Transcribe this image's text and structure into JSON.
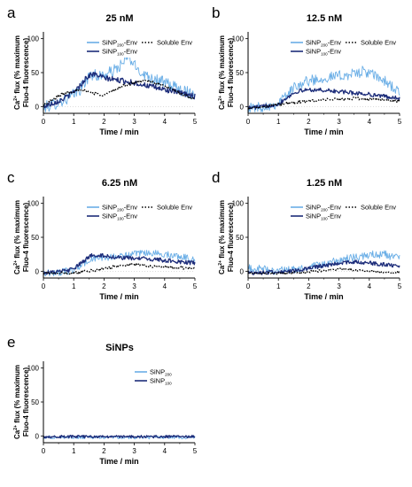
{
  "chart_data": [
    {
      "panel_letter": "a",
      "title": "25 nM",
      "type": "line",
      "xlabel": "Time / min",
      "ylabel_prefix": "Ca",
      "ylabel_sup": "2+",
      "ylabel_rest": " flux (% maximum",
      "ylabel_line2": "Fluo-4 fluorescence)",
      "xlim": [
        0,
        5
      ],
      "ylim": [
        -10,
        110
      ],
      "xticks": [
        "0",
        "1",
        "2",
        "3",
        "4",
        "5"
      ],
      "yticks": [
        "0",
        "50",
        "100"
      ],
      "legend": [
        {
          "main": "SiNP",
          "sub": "200",
          "rest": "-Env"
        },
        {
          "main": "SiNP",
          "sub": "100",
          "rest": "-Env"
        },
        {
          "main": "Soluble Env",
          "sub": "",
          "rest": ""
        }
      ],
      "series": [
        {
          "name": "SiNP200-Env",
          "color": "#6aaee6",
          "noise": 9,
          "x": [
            0,
            0.3,
            0.6,
            0.9,
            1.2,
            1.4,
            1.6,
            1.8,
            2.0,
            2.3,
            2.6,
            2.8,
            3.0,
            3.3,
            3.6,
            4.0,
            4.5,
            5.0
          ],
          "y": [
            -2,
            3,
            8,
            14,
            25,
            38,
            48,
            45,
            46,
            52,
            62,
            75,
            60,
            48,
            42,
            35,
            25,
            18
          ]
        },
        {
          "name": "SiNP100-Env",
          "color": "#1d2d7a",
          "noise": 4,
          "x": [
            0,
            0.3,
            0.6,
            0.9,
            1.2,
            1.4,
            1.6,
            1.8,
            2.0,
            2.3,
            2.6,
            3.0,
            3.5,
            4.0,
            4.5,
            5.0
          ],
          "y": [
            0,
            5,
            10,
            18,
            30,
            42,
            48,
            46,
            42,
            40,
            38,
            35,
            30,
            25,
            20,
            15
          ]
        },
        {
          "name": "Soluble Env",
          "color": "#000000",
          "noise": 2,
          "x": [
            0,
            0.3,
            0.6,
            0.9,
            1.2,
            1.5,
            1.8,
            2.0,
            2.3,
            2.6,
            3.0,
            3.3,
            3.6,
            4.0,
            4.5,
            5.0
          ],
          "y": [
            2,
            10,
            18,
            22,
            24,
            22,
            18,
            17,
            24,
            30,
            35,
            38,
            36,
            30,
            20,
            10
          ]
        }
      ]
    },
    {
      "panel_letter": "b",
      "title": "12.5 nM",
      "type": "line",
      "xlabel": "Time / min",
      "ylabel_prefix": "Ca",
      "ylabel_sup": "2+",
      "ylabel_rest": " flux (% maximum",
      "ylabel_line2": "Fluo-4 fluorescence)",
      "xlim": [
        0,
        5
      ],
      "ylim": [
        -10,
        110
      ],
      "xticks": [
        "0",
        "1",
        "2",
        "3",
        "4",
        "5"
      ],
      "yticks": [
        "0",
        "50",
        "100"
      ],
      "legend": [
        {
          "main": "SiNP",
          "sub": "200",
          "rest": "-Env"
        },
        {
          "main": "SiNP",
          "sub": "100",
          "rest": "-Env"
        },
        {
          "main": "Soluble Env",
          "sub": "",
          "rest": ""
        }
      ],
      "series": [
        {
          "name": "SiNP200-Env",
          "color": "#6aaee6",
          "noise": 8,
          "x": [
            0,
            0.5,
            1.0,
            1.3,
            1.6,
            2.0,
            2.5,
            3.0,
            3.5,
            3.8,
            4.2,
            4.6,
            5.0
          ],
          "y": [
            -3,
            0,
            5,
            18,
            32,
            38,
            42,
            45,
            48,
            52,
            45,
            35,
            20
          ]
        },
        {
          "name": "SiNP100-Env",
          "color": "#1d2d7a",
          "noise": 3,
          "x": [
            0,
            0.5,
            1.0,
            1.3,
            1.6,
            2.0,
            2.5,
            3.0,
            3.5,
            4.0,
            4.5,
            5.0
          ],
          "y": [
            -2,
            0,
            4,
            14,
            22,
            25,
            24,
            22,
            20,
            18,
            15,
            12
          ]
        },
        {
          "name": "Soluble Env",
          "color": "#000000",
          "noise": 2,
          "x": [
            0,
            0.5,
            1.0,
            1.5,
            2.0,
            2.5,
            3.0,
            3.5,
            4.0,
            4.5,
            5.0
          ],
          "y": [
            -2,
            -1,
            3,
            6,
            8,
            10,
            11,
            12,
            11,
            10,
            8
          ]
        }
      ]
    },
    {
      "panel_letter": "c",
      "title": "6.25 nM",
      "type": "line",
      "xlabel": "Time / min",
      "ylabel_prefix": "Ca",
      "ylabel_sup": "2+",
      "ylabel_rest": " flux (% maximum",
      "ylabel_line2": "Fluo-4 fluorescence)",
      "xlim": [
        0,
        5
      ],
      "ylim": [
        -10,
        110
      ],
      "xticks": [
        "0",
        "1",
        "2",
        "3",
        "4",
        "5"
      ],
      "yticks": [
        "0",
        "50",
        "100"
      ],
      "legend": [
        {
          "main": "SiNP",
          "sub": "200",
          "rest": "-Env"
        },
        {
          "main": "SiNP",
          "sub": "100",
          "rest": "-Env"
        },
        {
          "main": "Soluble Env",
          "sub": "",
          "rest": ""
        }
      ],
      "series": [
        {
          "name": "SiNP200-Env",
          "color": "#6aaee6",
          "noise": 5,
          "x": [
            0,
            0.5,
            1.0,
            1.3,
            1.6,
            2.0,
            2.5,
            3.0,
            3.5,
            4.0,
            4.5,
            5.0
          ],
          "y": [
            -3,
            -2,
            2,
            10,
            18,
            20,
            22,
            25,
            27,
            25,
            22,
            18
          ]
        },
        {
          "name": "SiNP100-Env",
          "color": "#1d2d7a",
          "noise": 3,
          "x": [
            0,
            0.5,
            1.0,
            1.3,
            1.6,
            2.0,
            2.5,
            3.0,
            3.5,
            4.0,
            4.5,
            5.0
          ],
          "y": [
            -2,
            -1,
            3,
            14,
            24,
            23,
            20,
            19,
            18,
            16,
            14,
            12
          ]
        },
        {
          "name": "Soluble Env",
          "color": "#000000",
          "noise": 2,
          "x": [
            0,
            0.5,
            1.0,
            1.5,
            2.0,
            2.5,
            3.0,
            3.5,
            4.0,
            4.5,
            5.0
          ],
          "y": [
            -3,
            -3,
            -2,
            0,
            4,
            8,
            10,
            8,
            6,
            5,
            4
          ]
        }
      ]
    },
    {
      "panel_letter": "d",
      "title": "1.25 nM",
      "type": "line",
      "xlabel": "Time / min",
      "ylabel_prefix": "Ca",
      "ylabel_sup": "2+",
      "ylabel_rest": " flux (% maximum",
      "ylabel_line2": "Fluo-4 fluorescence)",
      "xlim": [
        0,
        5
      ],
      "ylim": [
        -10,
        110
      ],
      "xticks": [
        "0",
        "1",
        "2",
        "3",
        "4",
        "5"
      ],
      "yticks": [
        "0",
        "50",
        "100"
      ],
      "legend": [
        {
          "main": "SiNP",
          "sub": "200",
          "rest": "-Env"
        },
        {
          "main": "SiNP",
          "sub": "100",
          "rest": "-Env"
        },
        {
          "main": "Soluble Env",
          "sub": "",
          "rest": ""
        }
      ],
      "series": [
        {
          "name": "SiNP200-Env",
          "color": "#6aaee6",
          "noise": 6,
          "x": [
            0,
            0.5,
            1.0,
            1.5,
            2.0,
            2.5,
            3.0,
            3.5,
            4.0,
            4.5,
            5.0
          ],
          "y": [
            4,
            3,
            1,
            2,
            5,
            10,
            16,
            20,
            24,
            25,
            18
          ]
        },
        {
          "name": "SiNP100-Env",
          "color": "#1d2d7a",
          "noise": 3,
          "x": [
            0,
            0.5,
            1.0,
            1.5,
            2.0,
            2.5,
            3.0,
            3.5,
            4.0,
            4.5,
            5.0
          ],
          "y": [
            -2,
            -2,
            -1,
            0,
            4,
            8,
            12,
            14,
            12,
            10,
            8
          ]
        },
        {
          "name": "Soluble Env",
          "color": "#000000",
          "noise": 1.5,
          "x": [
            0,
            0.5,
            1.0,
            1.5,
            2.0,
            2.5,
            3.0,
            3.5,
            4.0,
            4.5,
            5.0
          ],
          "y": [
            -3,
            -3,
            -3,
            -2,
            -1,
            1,
            3,
            2,
            0,
            -1,
            -2
          ]
        }
      ]
    },
    {
      "panel_letter": "e",
      "title": "SiNPs",
      "type": "line",
      "xlabel": "Time / min",
      "ylabel_prefix": "Ca",
      "ylabel_sup": "2+",
      "ylabel_rest": " flux (% maximum",
      "ylabel_line2": "Fluo-4 fluorescence)",
      "xlim": [
        0,
        5
      ],
      "ylim": [
        -10,
        110
      ],
      "xticks": [
        "0",
        "1",
        "2",
        "3",
        "4",
        "5"
      ],
      "yticks": [
        "0",
        "50",
        "100"
      ],
      "legend": [
        {
          "main": "SiNP",
          "sub": "200",
          "rest": ""
        },
        {
          "main": "SiNP",
          "sub": "100",
          "rest": ""
        }
      ],
      "series": [
        {
          "name": "SiNP200",
          "color": "#6aaee6",
          "noise": 2.5,
          "x": [
            0,
            1,
            2,
            3,
            4,
            5
          ],
          "y": [
            -2,
            -2,
            -2,
            -2,
            -2,
            -2
          ]
        },
        {
          "name": "SiNP100",
          "color": "#1d2d7a",
          "noise": 2,
          "x": [
            0,
            1,
            2,
            3,
            4,
            5
          ],
          "y": [
            -1,
            -1,
            -1,
            -1,
            -1,
            -1
          ]
        }
      ]
    }
  ]
}
